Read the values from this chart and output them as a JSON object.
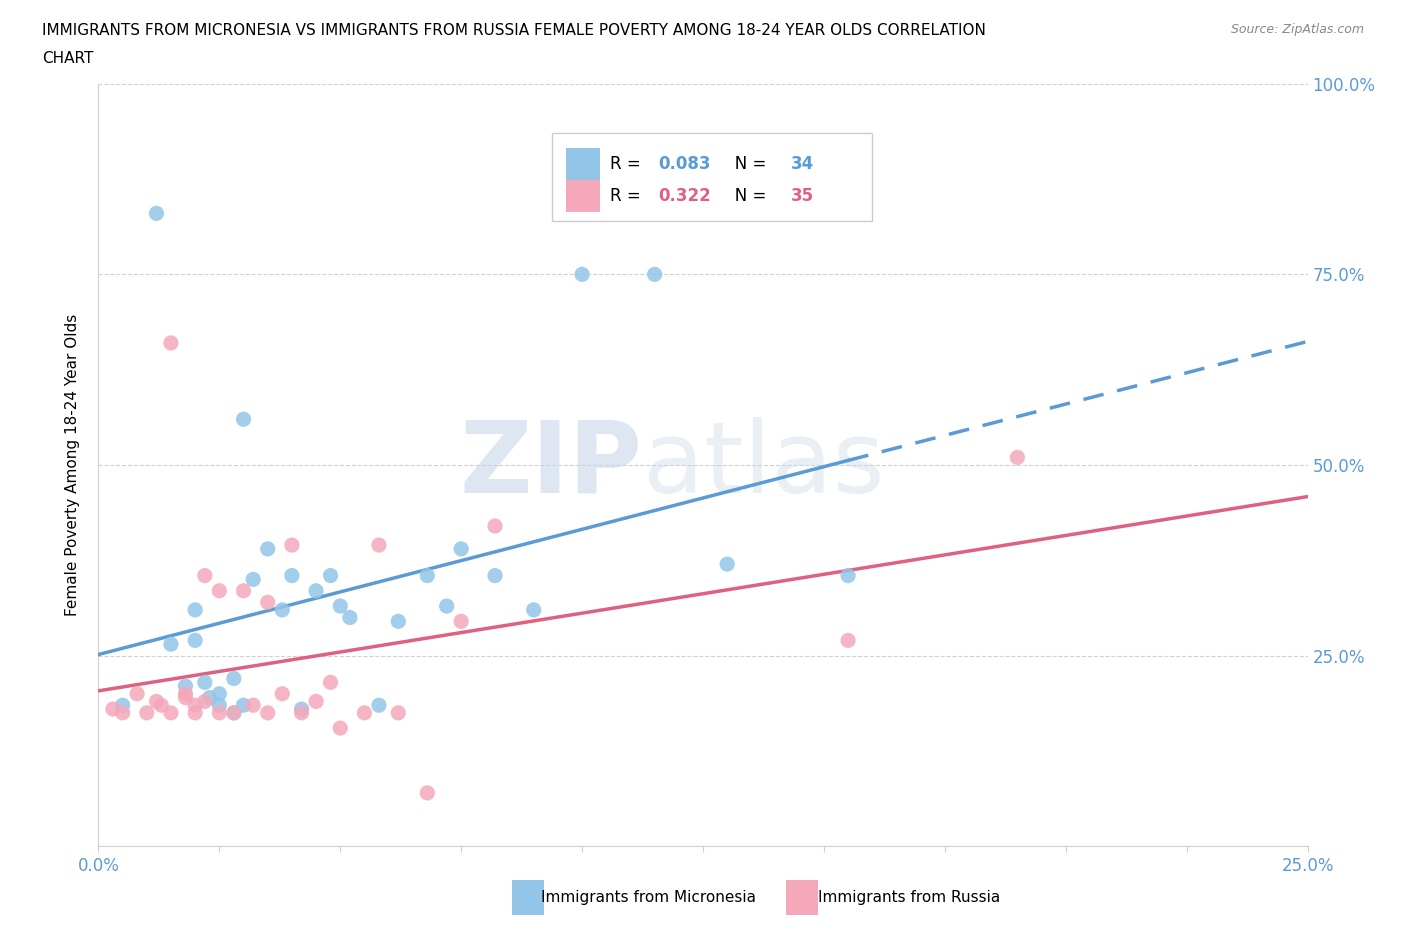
{
  "title_line1": "IMMIGRANTS FROM MICRONESIA VS IMMIGRANTS FROM RUSSIA FEMALE POVERTY AMONG 18-24 YEAR OLDS CORRELATION",
  "title_line2": "CHART",
  "source": "Source: ZipAtlas.com",
  "ylabel": "Female Poverty Among 18-24 Year Olds",
  "xlim": [
    0.0,
    0.25
  ],
  "ylim": [
    0.0,
    1.0
  ],
  "r_micronesia": 0.083,
  "n_micronesia": 34,
  "r_russia": 0.322,
  "n_russia": 35,
  "color_micronesia": "#92c5e8",
  "color_russia": "#f4a8ba",
  "line_color_micronesia": "#5b9bd5",
  "line_color_russia": "#e06080",
  "legend_r_color_micronesia": "#5b9bd5",
  "legend_r_color_russia": "#e06080",
  "micronesia_x": [
    0.005,
    0.012,
    0.015,
    0.018,
    0.02,
    0.02,
    0.022,
    0.023,
    0.025,
    0.025,
    0.028,
    0.028,
    0.03,
    0.03,
    0.032,
    0.035,
    0.038,
    0.04,
    0.042,
    0.045,
    0.048,
    0.05,
    0.052,
    0.058,
    0.062,
    0.068,
    0.072,
    0.075,
    0.082,
    0.09,
    0.1,
    0.115,
    0.13,
    0.155
  ],
  "micronesia_y": [
    0.185,
    0.83,
    0.265,
    0.21,
    0.27,
    0.31,
    0.215,
    0.195,
    0.185,
    0.2,
    0.175,
    0.22,
    0.56,
    0.185,
    0.35,
    0.39,
    0.31,
    0.355,
    0.18,
    0.335,
    0.355,
    0.315,
    0.3,
    0.185,
    0.295,
    0.355,
    0.315,
    0.39,
    0.355,
    0.31,
    0.75,
    0.75,
    0.37,
    0.355
  ],
  "russia_x": [
    0.003,
    0.005,
    0.008,
    0.01,
    0.012,
    0.013,
    0.015,
    0.015,
    0.018,
    0.018,
    0.02,
    0.02,
    0.022,
    0.022,
    0.025,
    0.025,
    0.028,
    0.03,
    0.032,
    0.035,
    0.035,
    0.038,
    0.04,
    0.042,
    0.045,
    0.048,
    0.05,
    0.055,
    0.058,
    0.062,
    0.068,
    0.075,
    0.082,
    0.155,
    0.19
  ],
  "russia_y": [
    0.18,
    0.175,
    0.2,
    0.175,
    0.19,
    0.185,
    0.66,
    0.175,
    0.195,
    0.2,
    0.175,
    0.185,
    0.19,
    0.355,
    0.175,
    0.335,
    0.175,
    0.335,
    0.185,
    0.32,
    0.175,
    0.2,
    0.395,
    0.175,
    0.19,
    0.215,
    0.155,
    0.175,
    0.395,
    0.175,
    0.07,
    0.295,
    0.42,
    0.27,
    0.51
  ]
}
